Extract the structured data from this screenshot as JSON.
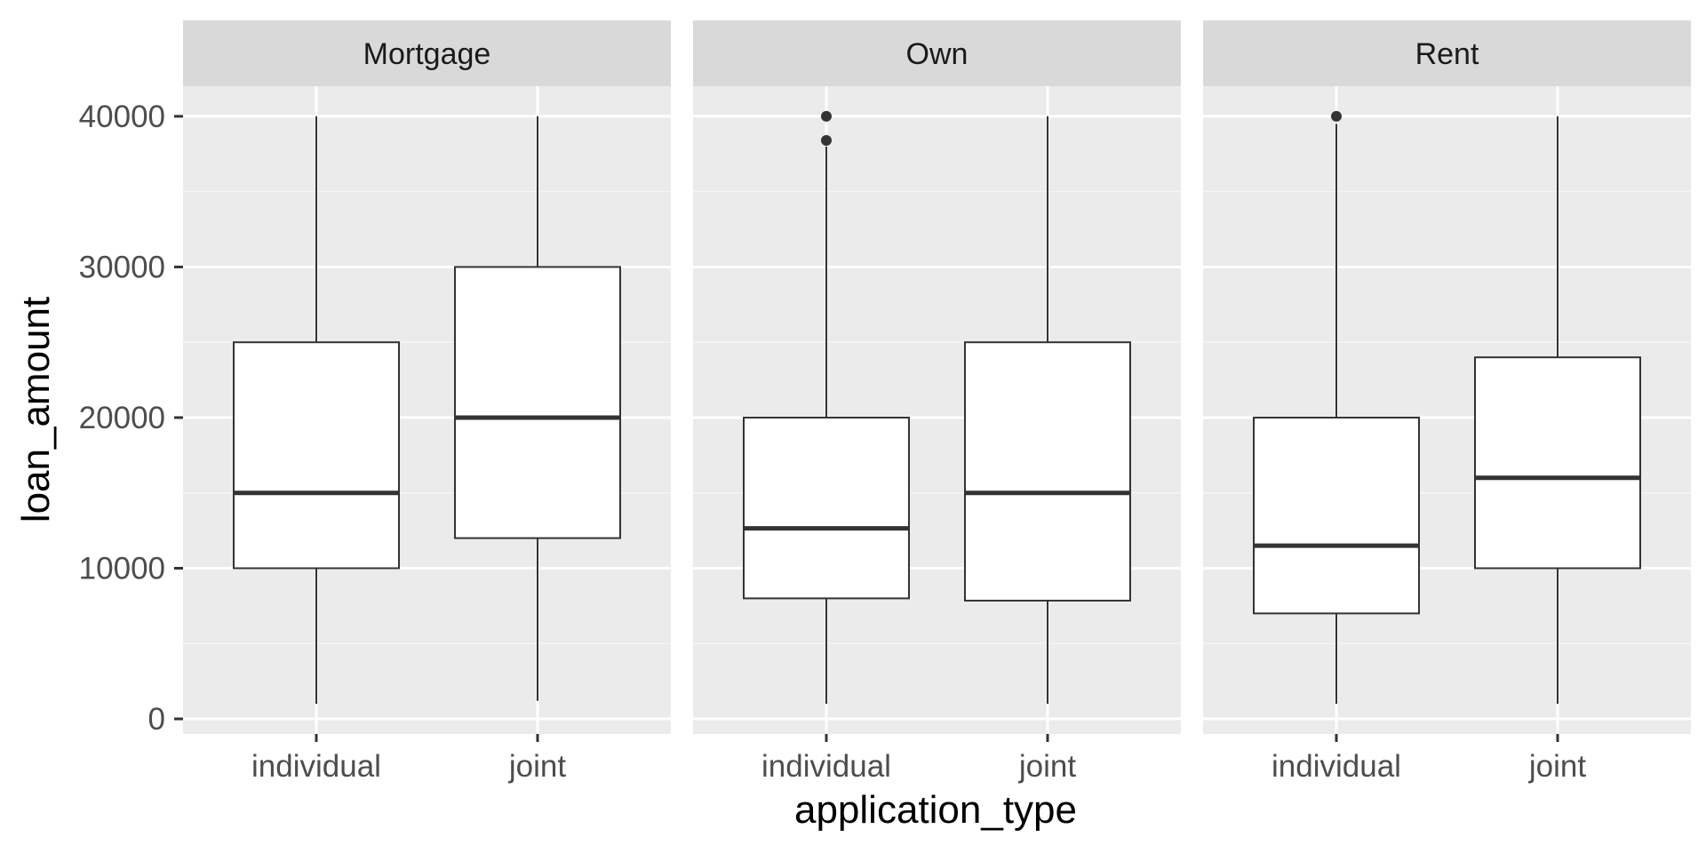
{
  "chart_data": {
    "type": "boxplot",
    "facet_var": "homeownership",
    "xlabel": "application_type",
    "ylabel": "loan_amount",
    "ylim": [
      -1000,
      42000
    ],
    "y_ticks": [
      0,
      10000,
      20000,
      30000,
      40000
    ],
    "categories": [
      "individual",
      "joint"
    ],
    "grid": true,
    "colors": {
      "panel_bg": "#ebebeb",
      "strip_bg": "#d9d9d9",
      "grid_major": "#ffffff",
      "grid_minor": "#f5f5f5",
      "box_fill": "#ffffff",
      "box_line": "#333333",
      "tick_text": "#4d4d4d"
    },
    "panels": [
      {
        "label": "Mortgage",
        "boxes": [
          {
            "category": "individual",
            "min": 1000,
            "q1": 10000,
            "median": 15000,
            "q3": 25000,
            "max": 40000,
            "outliers": []
          },
          {
            "category": "joint",
            "min": 1200,
            "q1": 12000,
            "median": 20000,
            "q3": 30000,
            "max": 40000,
            "outliers": []
          }
        ]
      },
      {
        "label": "Own",
        "boxes": [
          {
            "category": "individual",
            "min": 1000,
            "q1": 8000,
            "median": 12650,
            "q3": 20000,
            "max": 38000,
            "outliers": [
              38400,
              40000
            ]
          },
          {
            "category": "joint",
            "min": 1000,
            "q1": 7850,
            "median": 15000,
            "q3": 25000,
            "max": 40000,
            "outliers": []
          }
        ]
      },
      {
        "label": "Rent",
        "boxes": [
          {
            "category": "individual",
            "min": 1000,
            "q1": 7000,
            "median": 11500,
            "q3": 20000,
            "max": 39500,
            "outliers": [
              40000
            ]
          },
          {
            "category": "joint",
            "min": 1000,
            "q1": 10000,
            "median": 16000,
            "q3": 24000,
            "max": 40000,
            "outliers": []
          }
        ]
      }
    ]
  }
}
